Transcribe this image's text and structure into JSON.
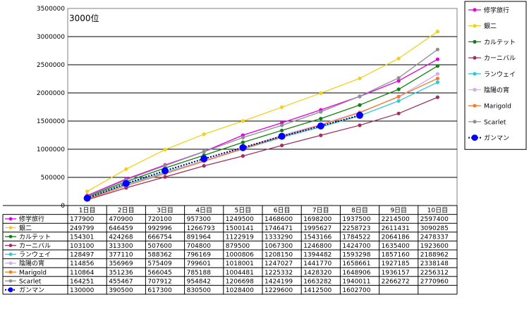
{
  "chart_data": {
    "type": "line",
    "title": "3000位",
    "xlabel": "",
    "ylabel": "",
    "ylim": [
      0,
      3500000
    ],
    "yticks": [
      "0",
      "500000",
      "1000000",
      "1500000",
      "2000000",
      "2500000",
      "3000000",
      "3500000"
    ],
    "grid": true,
    "legend": "right",
    "categories": [
      "1日目",
      "2日目",
      "3日目",
      "4日目",
      "5日目",
      "6日目",
      "7日目",
      "8日目",
      "9日目",
      "10日目"
    ],
    "series": [
      {
        "name": "修学旅行",
        "color": "#e000e0",
        "values": [
          177900,
          470900,
          720100,
          957300,
          1249500,
          1468600,
          1698200,
          1937500,
          2214500,
          2597400
        ]
      },
      {
        "name": "銀二",
        "color": "#f0d020",
        "values": [
          249799,
          646459,
          992996,
          1266793,
          1500141,
          1746471,
          1995627,
          2258723,
          2611431,
          3090285
        ]
      },
      {
        "name": "カルテット",
        "color": "#108010",
        "values": [
          154301,
          424268,
          666754,
          891964,
          1122919,
          1333290,
          1543166,
          1784522,
          2064186,
          2478337
        ]
      },
      {
        "name": "カーニバル",
        "color": "#a03060",
        "values": [
          103100,
          313300,
          507600,
          704800,
          879500,
          1067300,
          1246800,
          1424700,
          1635400,
          1923600
        ]
      },
      {
        "name": "ランウェイ",
        "color": "#30c8e0",
        "values": [
          128497,
          377110,
          588362,
          796169,
          1000806,
          1208150,
          1394482,
          1593298,
          1857160,
          2188962
        ]
      },
      {
        "name": "陰陽の宵",
        "color": "#d8a8f0",
        "values": [
          114856,
          356969,
          575409,
          799601,
          1018001,
          1247027,
          1441770,
          1658661,
          1927185,
          2338148
        ]
      },
      {
        "name": "Marigold",
        "color": "#f08030",
        "values": [
          110864,
          351236,
          566045,
          785188,
          1004481,
          1225332,
          1428320,
          1648906,
          1936157,
          2256312
        ]
      },
      {
        "name": "Scarlet",
        "color": "#909090",
        "values": [
          164251,
          455467,
          707912,
          954842,
          1206698,
          1424199,
          1663282,
          1940011,
          2266272,
          2770960
        ]
      },
      {
        "name": "ガンマン",
        "color": "#0000ff",
        "dashed": true,
        "values": [
          130000,
          390500,
          617300,
          830500,
          1028400,
          1229600,
          1412500,
          1602700,
          null,
          null
        ]
      }
    ]
  }
}
